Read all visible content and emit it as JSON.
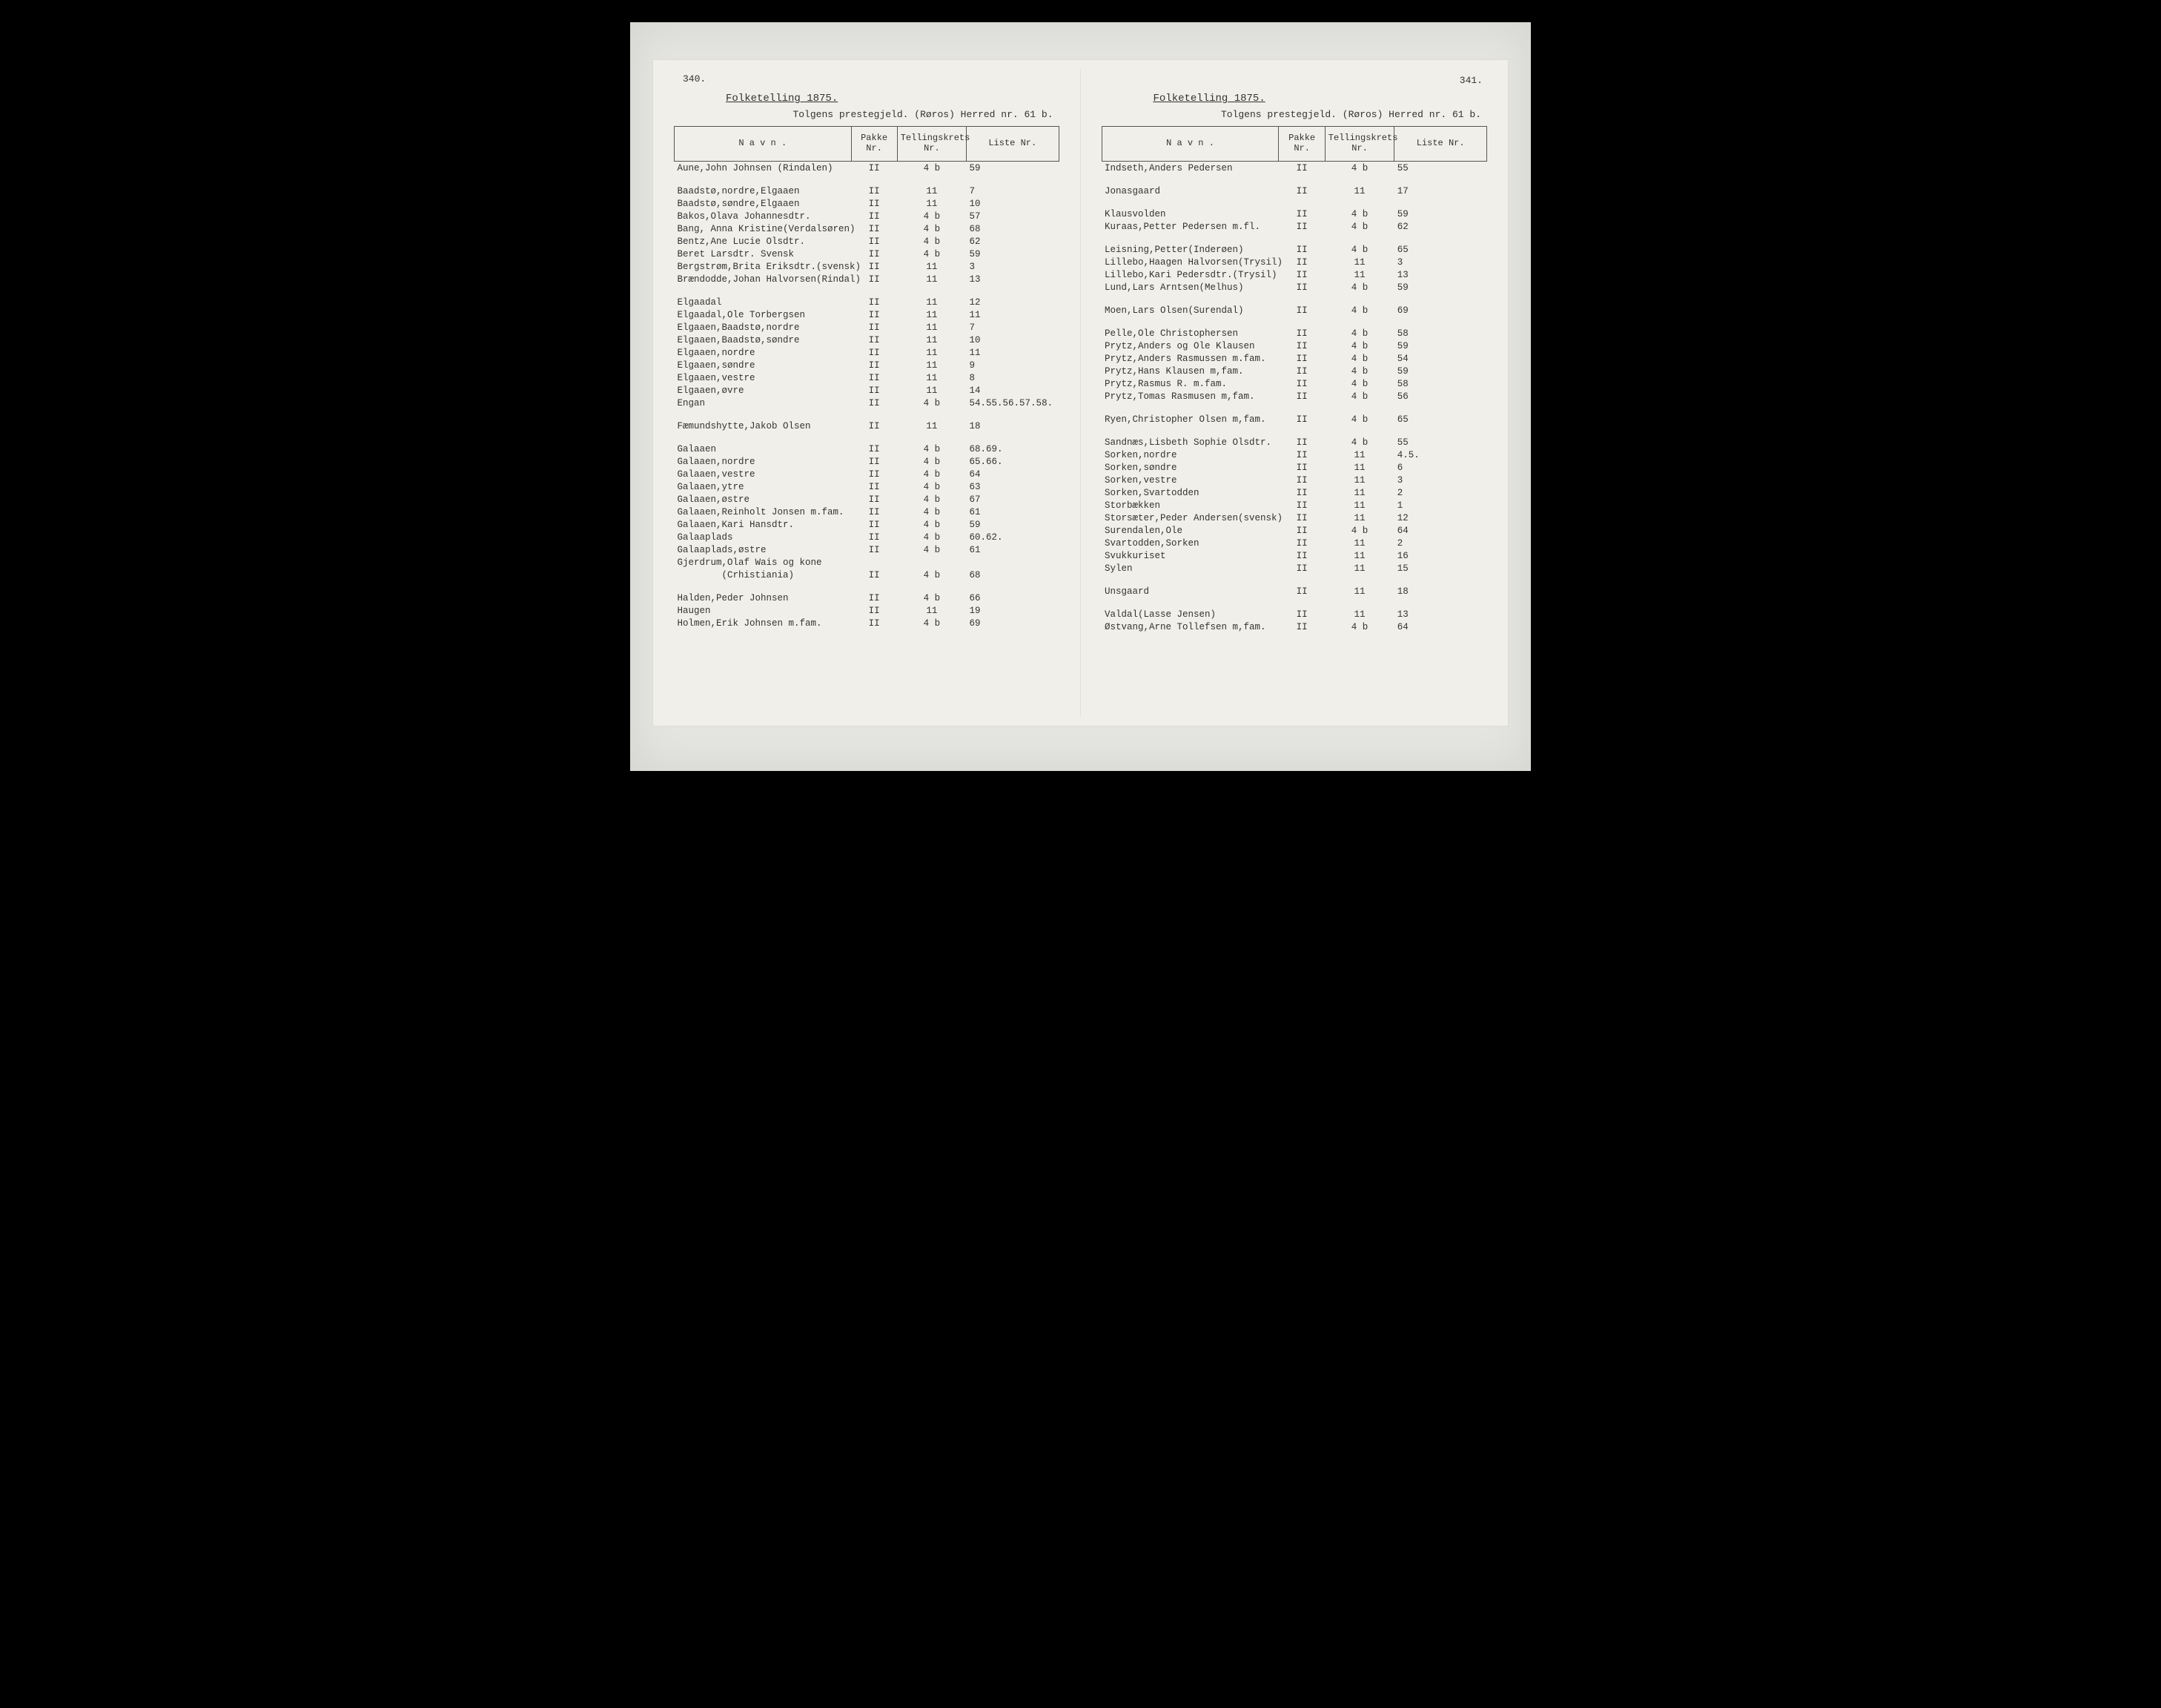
{
  "left": {
    "page_number": "340.",
    "title": "Folketelling 1875.",
    "subtitle": "Tolgens prestegjeld. (Røros) Herred nr. 61 b.",
    "headers": {
      "name": "N a v n .",
      "pakke": "Pakke\nNr.",
      "krets": "Tellingskrets\nNr.",
      "liste": "Liste\nNr."
    },
    "rows": [
      {
        "n": "Aune,John Johnsen (Rindalen)",
        "p": "II",
        "k": "4 b",
        "l": "59"
      },
      {
        "gap": true
      },
      {
        "n": "Baadstø,nordre,Elgaaen",
        "p": "II",
        "k": "11",
        "l": "7"
      },
      {
        "n": "Baadstø,søndre,Elgaaen",
        "p": "II",
        "k": "11",
        "l": "10"
      },
      {
        "n": "Bakos,Olava Johannesdtr.",
        "p": "II",
        "k": "4 b",
        "l": "57"
      },
      {
        "n": "Bang, Anna Kristine(Verdalsøren)",
        "p": "II",
        "k": "4 b",
        "l": "68"
      },
      {
        "n": "Bentz,Ane Lucie Olsdtr.",
        "p": "II",
        "k": "4 b",
        "l": "62"
      },
      {
        "n": "Beret Larsdtr. Svensk",
        "p": "II",
        "k": "4 b",
        "l": "59"
      },
      {
        "n": "Bergstrøm,Brita Eriksdtr.(svensk)",
        "p": "II",
        "k": "11",
        "l": "3"
      },
      {
        "n": "Brændodde,Johan Halvorsen(Rindal)",
        "p": "II",
        "k": "11",
        "l": "13"
      },
      {
        "gap": true
      },
      {
        "n": "Elgaadal",
        "p": "II",
        "k": "11",
        "l": "12"
      },
      {
        "n": "Elgaadal,Ole Torbergsen",
        "p": "II",
        "k": "11",
        "l": "11"
      },
      {
        "n": "Elgaaen,Baadstø,nordre",
        "p": "II",
        "k": "11",
        "l": "7"
      },
      {
        "n": "Elgaaen,Baadstø,søndre",
        "p": "II",
        "k": "11",
        "l": "10"
      },
      {
        "n": "Elgaaen,nordre",
        "p": "II",
        "k": "11",
        "l": "11"
      },
      {
        "n": "Elgaaen,søndre",
        "p": "II",
        "k": "11",
        "l": "9"
      },
      {
        "n": "Elgaaen,vestre",
        "p": "II",
        "k": "11",
        "l": "8"
      },
      {
        "n": "Elgaaen,øvre",
        "p": "II",
        "k": "11",
        "l": "14"
      },
      {
        "n": "Engan",
        "p": "II",
        "k": "4 b",
        "l": "54.55.56.57.58."
      },
      {
        "gap": true
      },
      {
        "n": "Fæmundshytte,Jakob Olsen",
        "p": "II",
        "k": "11",
        "l": "18"
      },
      {
        "gap": true
      },
      {
        "n": "Galaaen",
        "p": "II",
        "k": "4 b",
        "l": "68.69."
      },
      {
        "n": "Galaaen,nordre",
        "p": "II",
        "k": "4 b",
        "l": "65.66."
      },
      {
        "n": "Galaaen,vestre",
        "p": "II",
        "k": "4 b",
        "l": "64"
      },
      {
        "n": "Galaaen,ytre",
        "p": "II",
        "k": "4 b",
        "l": "63"
      },
      {
        "n": "Galaaen,østre",
        "p": "II",
        "k": "4 b",
        "l": "67"
      },
      {
        "n": "Galaaen,Reinholt Jonsen m.fam.",
        "p": "II",
        "k": "4 b",
        "l": "61"
      },
      {
        "n": "Galaaen,Kari Hansdtr.",
        "p": "II",
        "k": "4 b",
        "l": "59"
      },
      {
        "n": "Galaaplads",
        "p": "II",
        "k": "4 b",
        "l": "60.62."
      },
      {
        "n": "Galaaplads,østre",
        "p": "II",
        "k": "4 b",
        "l": "61"
      },
      {
        "n": "Gjerdrum,Olaf Wais og kone",
        "p": "",
        "k": "",
        "l": ""
      },
      {
        "n": "        (Crhistiania)",
        "p": "II",
        "k": "4 b",
        "l": "68"
      },
      {
        "gap": true
      },
      {
        "n": "Halden,Peder Johnsen",
        "p": "II",
        "k": "4 b",
        "l": "66"
      },
      {
        "n": "Haugen",
        "p": "II",
        "k": "11",
        "l": "19"
      },
      {
        "n": "Holmen,Erik Johnsen m.fam.",
        "p": "II",
        "k": "4 b",
        "l": "69"
      }
    ]
  },
  "right": {
    "page_number": "341.",
    "title": "Folketelling 1875.",
    "subtitle": "Tolgens prestegjeld. (Røros) Herred nr. 61 b.",
    "headers": {
      "name": "N a v n .",
      "pakke": "Pakke\nNr.",
      "krets": "Tellingskrets\nNr.",
      "liste": "Liste\nNr."
    },
    "rows": [
      {
        "n": "Indseth,Anders Pedersen",
        "p": "II",
        "k": "4 b",
        "l": "55"
      },
      {
        "gap": true
      },
      {
        "n": "Jonasgaard",
        "p": "II",
        "k": "11",
        "l": "17"
      },
      {
        "gap": true
      },
      {
        "n": "Klausvolden",
        "p": "II",
        "k": "4 b",
        "l": "59"
      },
      {
        "n": "Kuraas,Petter Pedersen m.fl.",
        "p": "II",
        "k": "4 b",
        "l": "62"
      },
      {
        "gap": true
      },
      {
        "n": "Leisning,Petter(Inderøen)",
        "p": "II",
        "k": "4 b",
        "l": "65"
      },
      {
        "n": "Lillebo,Haagen Halvorsen(Trysil)",
        "p": "II",
        "k": "11",
        "l": "3"
      },
      {
        "n": "Lillebo,Kari Pedersdtr.(Trysil)",
        "p": "II",
        "k": "11",
        "l": "13"
      },
      {
        "n": "Lund,Lars Arntsen(Melhus)",
        "p": "II",
        "k": "4 b",
        "l": "59"
      },
      {
        "gap": true
      },
      {
        "n": "Moen,Lars Olsen(Surendal)",
        "p": "II",
        "k": "4 b",
        "l": "69"
      },
      {
        "gap": true
      },
      {
        "n": "Pelle,Ole Christophersen",
        "p": "II",
        "k": "4 b",
        "l": "58"
      },
      {
        "n": "Prytz,Anders og Ole Klausen",
        "p": "II",
        "k": "4 b",
        "l": "59"
      },
      {
        "n": "Prytz,Anders Rasmussen m.fam.",
        "p": "II",
        "k": "4 b",
        "l": "54"
      },
      {
        "n": "Prytz,Hans Klausen m,fam.",
        "p": "II",
        "k": "4 b",
        "l": "59"
      },
      {
        "n": "Prytz,Rasmus R. m.fam.",
        "p": "II",
        "k": "4 b",
        "l": "58"
      },
      {
        "n": "Prytz,Tomas Rasmusen m,fam.",
        "p": "II",
        "k": "4 b",
        "l": "56"
      },
      {
        "gap": true
      },
      {
        "n": "Ryen,Christopher  Olsen m,fam.",
        "p": "II",
        "k": "4 b",
        "l": "65"
      },
      {
        "gap": true
      },
      {
        "n": "Sandnæs,Lisbeth Sophie Olsdtr.",
        "p": "II",
        "k": "4 b",
        "l": "55"
      },
      {
        "n": "Sorken,nordre",
        "p": "II",
        "k": "11",
        "l": "4.5."
      },
      {
        "n": "Sorken,søndre",
        "p": "II",
        "k": "11",
        "l": "6"
      },
      {
        "n": "Sorken,vestre",
        "p": "II",
        "k": "11",
        "l": "3"
      },
      {
        "n": "Sorken,Svartodden",
        "p": "II",
        "k": "11",
        "l": "2"
      },
      {
        "n": "Storbækken",
        "p": "II",
        "k": "11",
        "l": "1"
      },
      {
        "n": "Storsæter,Peder Andersen(svensk)",
        "p": "II",
        "k": "11",
        "l": "12"
      },
      {
        "n": "Surendalen,Ole",
        "p": "II",
        "k": "4 b",
        "l": "64"
      },
      {
        "n": "Svartodden,Sorken",
        "p": "II",
        "k": "11",
        "l": "2"
      },
      {
        "n": "Svukkuriset",
        "p": "II",
        "k": "11",
        "l": "16"
      },
      {
        "n": "Sylen",
        "p": "II",
        "k": "11",
        "l": "15"
      },
      {
        "gap": true
      },
      {
        "n": "Unsgaard",
        "p": "II",
        "k": "11",
        "l": "18"
      },
      {
        "gap": true
      },
      {
        "n": "Valdal(Lasse Jensen)",
        "p": "II",
        "k": "11",
        "l": "13"
      },
      {
        "n": "Østvang,Arne Tollefsen m,fam.",
        "p": "II",
        "k": "4 b",
        "l": "64"
      }
    ]
  }
}
